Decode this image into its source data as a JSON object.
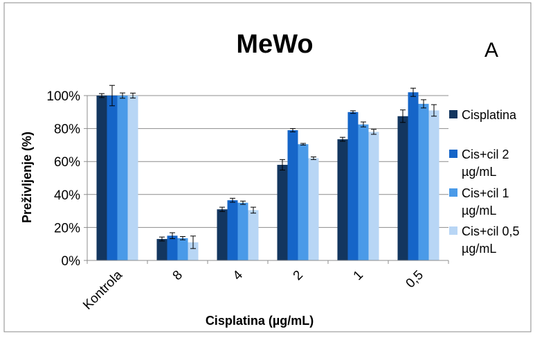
{
  "chart_data": {
    "type": "bar",
    "title": "MeWo",
    "panel_label": "A",
    "xlabel": "Cisplatina (µg/mL)",
    "ylabel": "Preživljenje (%)",
    "categories": [
      "Kontrola",
      "8",
      "4",
      "2",
      "1",
      "0,5"
    ],
    "ylim": [
      0,
      100
    ],
    "yticks": [
      "0%",
      "20%",
      "40%",
      "60%",
      "80%",
      "100%"
    ],
    "grid": true,
    "legend_position": "right",
    "series": [
      {
        "name": "Cisplatina",
        "color": "#13365f",
        "values": [
          100,
          13,
          31,
          58,
          73.5,
          87.5
        ],
        "errors": [
          1.2,
          1.2,
          1.3,
          3.2,
          1.2,
          3.8
        ]
      },
      {
        "name": "Cis+cil 2 µg/mL",
        "color": "#1565c8",
        "values": [
          100,
          15,
          36.5,
          79,
          90,
          102
        ],
        "errors": [
          6.2,
          1.8,
          1.2,
          1.0,
          0.8,
          2.5
        ]
      },
      {
        "name": "Cis+cil 1 µg/mL",
        "color": "#4a9ae8",
        "values": [
          100,
          13.5,
          35,
          70.5,
          82.5,
          95
        ],
        "errors": [
          1.6,
          1.0,
          1.0,
          0.5,
          1.5,
          2.5
        ]
      },
      {
        "name": "Cis+cil 0,5 µg/mL",
        "color": "#b8d6f5",
        "values": [
          100,
          11,
          30.5,
          62,
          78,
          91
        ],
        "errors": [
          1.5,
          3.8,
          1.8,
          0.8,
          1.5,
          3.5
        ]
      }
    ]
  }
}
